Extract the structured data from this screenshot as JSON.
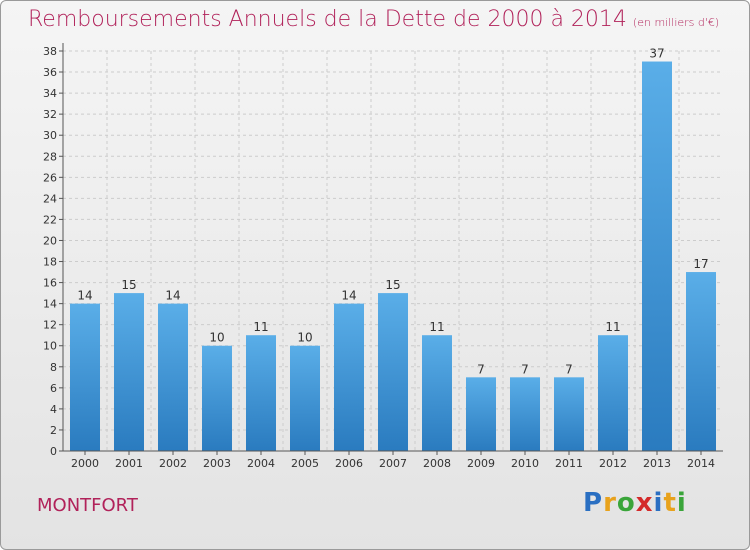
{
  "page": {
    "title": "Remboursements Annuels de la Dette de 2000 à 2014",
    "subtitle": "(en milliers d'€)",
    "commune": "MONTFORT",
    "logo_text": "Proxiti"
  },
  "chart_data": {
    "type": "bar",
    "title": "Remboursements Annuels de la Dette de 2000 à 2014",
    "subtitle": "(en milliers d'€)",
    "categories": [
      "2000",
      "2001",
      "2002",
      "2003",
      "2004",
      "2005",
      "2006",
      "2007",
      "2008",
      "2009",
      "2010",
      "2011",
      "2012",
      "2013",
      "2014"
    ],
    "values": [
      14,
      15,
      14,
      10,
      11,
      10,
      14,
      15,
      11,
      7,
      7,
      7,
      11,
      37,
      17
    ],
    "data_labels": [
      "14",
      "15",
      "14",
      "10",
      "11",
      "10",
      "14",
      "15",
      "11",
      "7",
      "7",
      "7",
      "11",
      "37",
      "17"
    ],
    "xlabel": "",
    "ylabel": "",
    "ylim": [
      0,
      38
    ],
    "yticks": [
      0,
      2,
      4,
      6,
      8,
      10,
      12,
      14,
      16,
      18,
      20,
      22,
      24,
      26,
      28,
      30,
      32,
      34,
      36,
      38
    ],
    "grid": true,
    "colors": {
      "bar_light": "#5aaee8",
      "bar_dark": "#2a7bbf",
      "title": "#b1225a",
      "grid": "#cccccc"
    }
  }
}
